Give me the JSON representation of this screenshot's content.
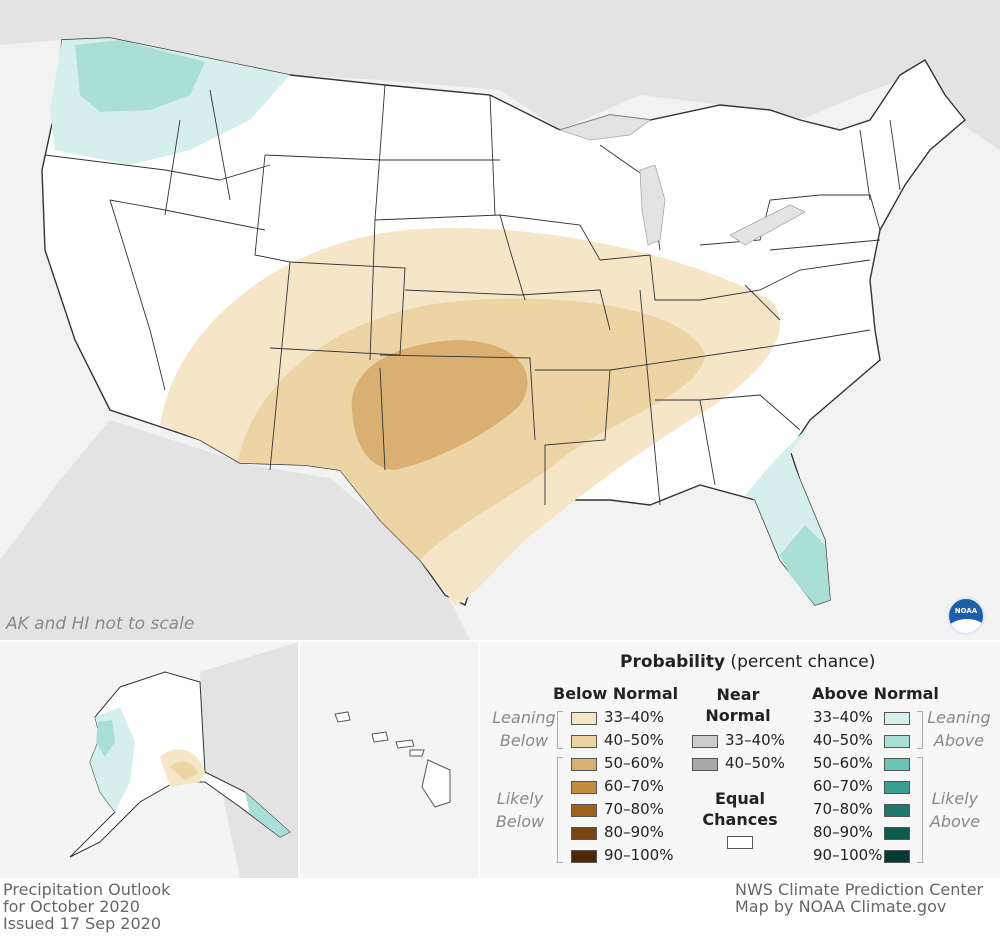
{
  "map": {
    "inset_note": "AK and HI not to scale",
    "logo_text": "NOAA",
    "colors": {
      "background": "#f2f2f2",
      "land": "#ffffff",
      "border": "#333333",
      "below_33_40": "#f5e6c8",
      "below_40_50": "#ecd4a4",
      "below_50_60": "#d9b071",
      "above_33_40": "#d5efec",
      "above_40_50": "#a9dfd6"
    }
  },
  "legend": {
    "title_bold": "Probability",
    "title_rest": " (percent chance)",
    "below": {
      "header": "Below Normal",
      "leaning_label": [
        "Leaning",
        "Below"
      ],
      "likely_label": [
        "Likely",
        "Below"
      ],
      "items": [
        {
          "label": "33–40%",
          "color": "#f5e6c8"
        },
        {
          "label": "40–50%",
          "color": "#ecd4a4"
        },
        {
          "label": "50–60%",
          "color": "#d9b071"
        },
        {
          "label": "60–70%",
          "color": "#c38d3f"
        },
        {
          "label": "70–80%",
          "color": "#a0621f"
        },
        {
          "label": "80–90%",
          "color": "#7a4510"
        },
        {
          "label": "90–100%",
          "color": "#4f2a06"
        }
      ]
    },
    "near": {
      "header": [
        "Near",
        "Normal"
      ],
      "items": [
        {
          "label": "33–40%",
          "color": "#cccccc"
        },
        {
          "label": "40–50%",
          "color": "#a8a8a8"
        }
      ]
    },
    "equal": {
      "header": [
        "Equal",
        "Chances"
      ],
      "color": "#ffffff"
    },
    "above": {
      "header": "Above Normal",
      "leaning_label": [
        "Leaning",
        "Above"
      ],
      "likely_label": [
        "Likely",
        "Above"
      ],
      "items": [
        {
          "label": "33–40%",
          "color": "#d5efec"
        },
        {
          "label": "40–50%",
          "color": "#a9dfd6"
        },
        {
          "label": "50–60%",
          "color": "#6cc4b6"
        },
        {
          "label": "60–70%",
          "color": "#3a9e90"
        },
        {
          "label": "70–80%",
          "color": "#1f7a6d"
        },
        {
          "label": "80–90%",
          "color": "#0f5a4f"
        },
        {
          "label": "90–100%",
          "color": "#053a32"
        }
      ]
    }
  },
  "footer": {
    "left": [
      "Precipitation Outlook",
      "for October 2020",
      "Issued 17 Sep 2020"
    ],
    "right": [
      "NWS Climate Prediction Center",
      "Map by NOAA Climate.gov"
    ]
  }
}
